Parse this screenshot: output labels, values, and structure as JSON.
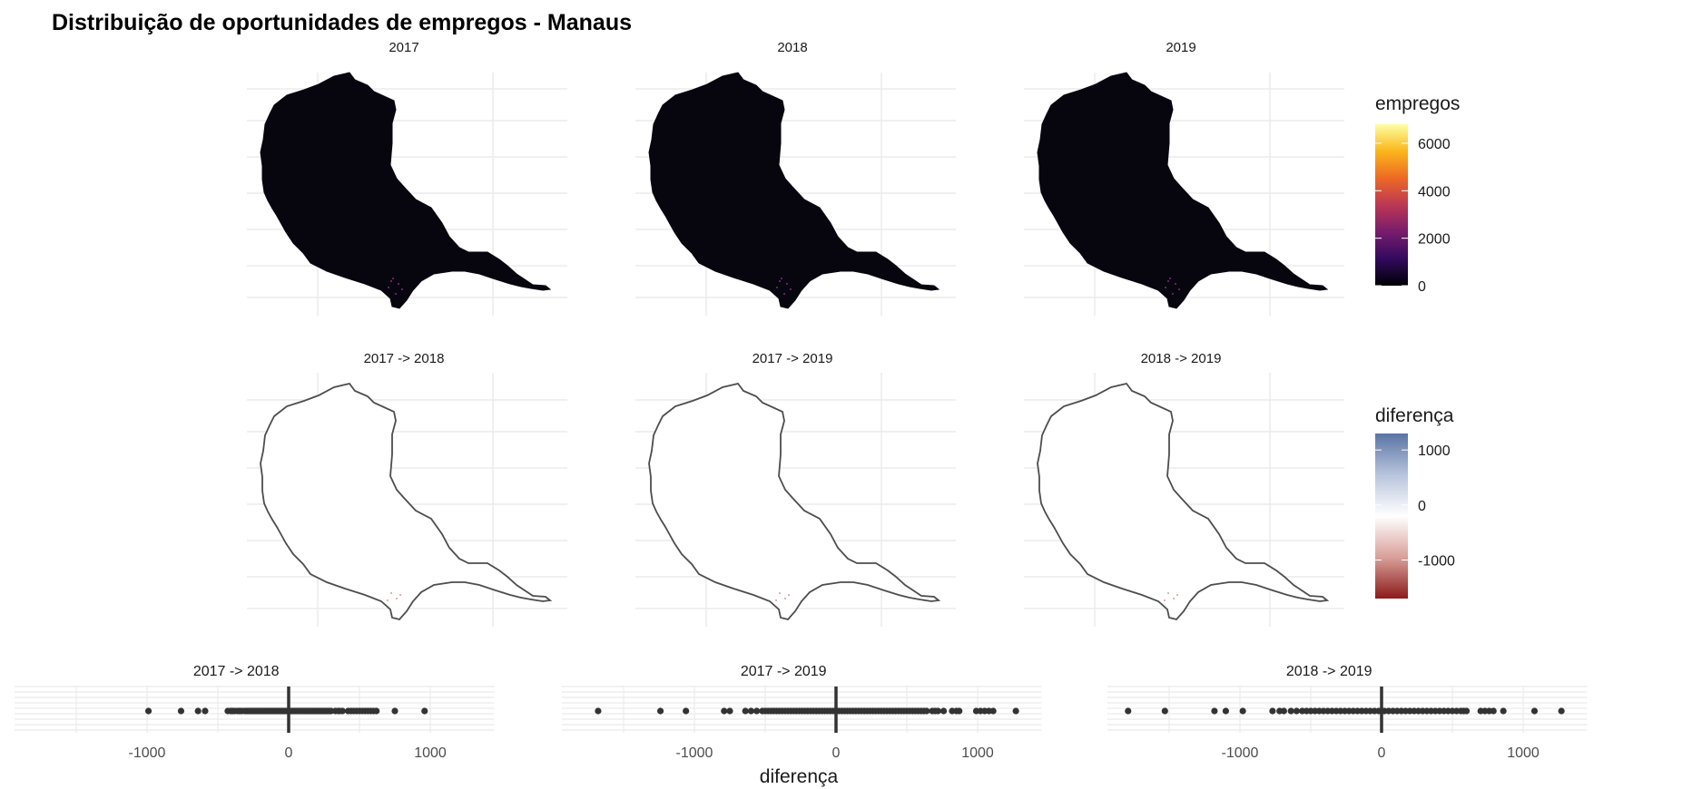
{
  "title": "Distribuição de oportunidades de empregos - Manaus",
  "colors": {
    "map_fill": "#07060f",
    "grid": "#ebebeb",
    "outline": "#4d4d4d",
    "points": "#333333",
    "empregos_scale": [
      "#000004",
      "#320a5e",
      "#781c6d",
      "#bc3754",
      "#ed6925",
      "#fbb61a",
      "#fcffa4"
    ],
    "diferenca_scale": [
      "#8b1a1a",
      "#d9a09a",
      "#ffffff",
      "#b8c4dc",
      "#5b74a5"
    ]
  },
  "chart_data": [
    {
      "type": "heatmap",
      "description_of_panels": "map",
      "panels": [
        "2017",
        "2018",
        "2019"
      ],
      "legend": {
        "title": "empregos",
        "ticks": [
          "6000",
          "4000",
          "2000",
          "0"
        ],
        "range": [
          0,
          6800
        ]
      }
    },
    {
      "type": "heatmap",
      "panels": [
        "2017 -> 2018",
        "2017 -> 2019",
        "2018 -> 2019"
      ],
      "legend": {
        "title": "diferença",
        "ticks": [
          "1000",
          "0",
          "-1000"
        ],
        "range": [
          -1700,
          1300
        ]
      }
    },
    {
      "type": "scatter",
      "xlabel": "diferença",
      "x_ticks": [
        "-1000",
        "0",
        "1000"
      ],
      "xlim": [
        -2000,
        1400
      ],
      "series": [
        {
          "name": "2017 -> 2018",
          "values": [
            -990,
            -760,
            -640,
            -590,
            -430,
            -410,
            -400,
            -395,
            -380,
            -360,
            -350,
            -340,
            -330,
            -310,
            -300,
            -290,
            -280,
            -270,
            -260,
            -250,
            -240,
            -230,
            -220,
            -210,
            -200,
            -190,
            -180,
            -170,
            -160,
            -150,
            -140,
            -130,
            -120,
            -110,
            -100,
            -90,
            -80,
            -70,
            -60,
            -50,
            -40,
            -30,
            -20,
            -10,
            0,
            10,
            20,
            30,
            40,
            50,
            60,
            70,
            80,
            90,
            100,
            110,
            120,
            130,
            140,
            150,
            160,
            170,
            180,
            190,
            200,
            210,
            220,
            230,
            240,
            250,
            260,
            270,
            280,
            290,
            300,
            330,
            350,
            360,
            380,
            420,
            440,
            460,
            480,
            500,
            520,
            540,
            560,
            580,
            600,
            620,
            750,
            960
          ]
        },
        {
          "name": "2017 -> 2019",
          "values": [
            -1680,
            -1240,
            -1060,
            -790,
            -750,
            -640,
            -600,
            -560,
            -520,
            -500,
            -480,
            -460,
            -440,
            -420,
            -400,
            -380,
            -360,
            -340,
            -320,
            -300,
            -280,
            -260,
            -240,
            -220,
            -200,
            -180,
            -160,
            -140,
            -120,
            -100,
            -80,
            -60,
            -40,
            -20,
            0,
            20,
            40,
            60,
            80,
            100,
            120,
            140,
            160,
            180,
            200,
            220,
            240,
            260,
            280,
            300,
            320,
            340,
            360,
            380,
            400,
            420,
            440,
            460,
            480,
            500,
            520,
            540,
            560,
            580,
            600,
            620,
            640,
            680,
            700,
            720,
            760,
            820,
            850,
            870,
            990,
            1020,
            1050,
            1080,
            1110,
            1270
          ]
        },
        {
          "name": "2018 -> 2019",
          "values": [
            -1790,
            -1530,
            -1180,
            -1100,
            -980,
            -770,
            -720,
            -690,
            -640,
            -600,
            -560,
            -530,
            -500,
            -470,
            -440,
            -410,
            -380,
            -350,
            -320,
            -290,
            -260,
            -230,
            -200,
            -170,
            -140,
            -110,
            -80,
            -50,
            -20,
            0,
            20,
            50,
            80,
            110,
            140,
            170,
            200,
            230,
            260,
            290,
            320,
            350,
            380,
            410,
            440,
            470,
            500,
            530,
            560,
            580,
            600,
            700,
            730,
            760,
            790,
            860,
            1080,
            1270
          ]
        }
      ]
    }
  ]
}
